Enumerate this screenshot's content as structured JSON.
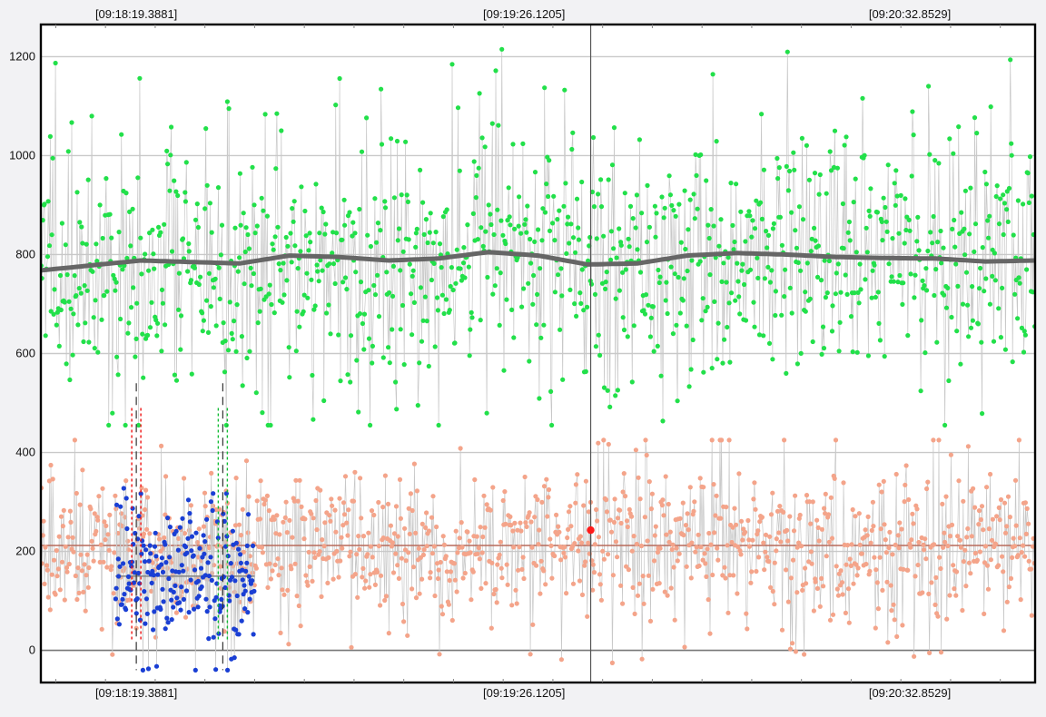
{
  "chart_data": {
    "type": "scatter",
    "title": "",
    "xlabel": "",
    "ylabel": "",
    "ylim": [
      -65,
      1265
    ],
    "y_ticks": [
      0,
      200,
      400,
      600,
      800,
      1000,
      1200
    ],
    "y_tick_labels": [
      "0",
      "200",
      "400",
      "600",
      "800",
      "1000",
      "1200"
    ],
    "time_markers": [
      {
        "label": "[09:18:19.3881]",
        "x": 0.096
      },
      {
        "label": "[09:19:26.1205]",
        "x": 0.486
      },
      {
        "label": "[09:20:32.8529]",
        "x": 0.874
      }
    ],
    "cursor_x": 0.553,
    "grid": true,
    "colors": {
      "background": "#ffffff",
      "upper_series": "#22e04a",
      "upper_trend": "#666666",
      "lower_series": "#f4a48a",
      "lower_baseline": "#b86a5a",
      "selected_series": "#1a3fd4",
      "marker_red": "#ee1111",
      "marker_green": "#11bb33",
      "cursor": "#555555",
      "highlight_point": "#ff1a1a"
    },
    "series": [
      {
        "role": "upper-points",
        "n": 1100,
        "x_range": [
          0,
          1
        ],
        "center": 790,
        "spread": 125,
        "min": 455,
        "max": 1215,
        "trend": [
          {
            "x": 0.0,
            "y": 768
          },
          {
            "x": 0.05,
            "y": 778
          },
          {
            "x": 0.1,
            "y": 788
          },
          {
            "x": 0.15,
            "y": 785
          },
          {
            "x": 0.2,
            "y": 782
          },
          {
            "x": 0.25,
            "y": 798
          },
          {
            "x": 0.3,
            "y": 795
          },
          {
            "x": 0.35,
            "y": 788
          },
          {
            "x": 0.4,
            "y": 792
          },
          {
            "x": 0.45,
            "y": 805
          },
          {
            "x": 0.5,
            "y": 798
          },
          {
            "x": 0.55,
            "y": 780
          },
          {
            "x": 0.6,
            "y": 782
          },
          {
            "x": 0.65,
            "y": 798
          },
          {
            "x": 0.7,
            "y": 803
          },
          {
            "x": 0.75,
            "y": 800
          },
          {
            "x": 0.8,
            "y": 795
          },
          {
            "x": 0.85,
            "y": 793
          },
          {
            "x": 0.9,
            "y": 792
          },
          {
            "x": 0.95,
            "y": 786
          },
          {
            "x": 1.0,
            "y": 788
          }
        ]
      },
      {
        "role": "lower-points",
        "n": 1100,
        "x_range": [
          0,
          1
        ],
        "center": 212,
        "spread": 75,
        "min": -40,
        "max": 425,
        "baseline": 212
      },
      {
        "role": "selected-points",
        "n": 220,
        "x_range": [
          0.075,
          0.215
        ],
        "center": 150,
        "spread": 70,
        "min": -40,
        "max": 335,
        "baseline": 150
      }
    ],
    "selection_markers": [
      {
        "x": 0.096,
        "color": "red"
      },
      {
        "x": 0.183,
        "color": "green"
      }
    ],
    "highlight_point": {
      "x": 0.553,
      "y": 243
    }
  }
}
